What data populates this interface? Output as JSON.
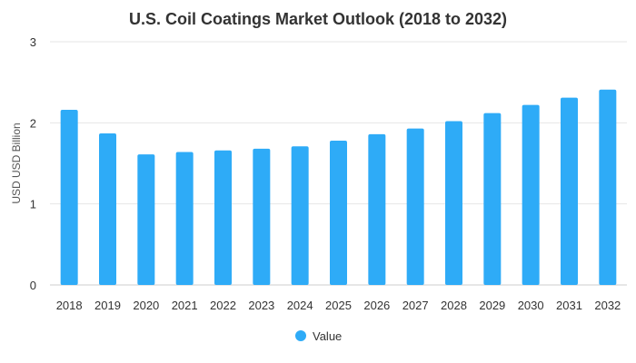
{
  "chart_data": {
    "type": "bar",
    "title": "U.S. Coil Coatings Market Outlook (2018 to 2032)",
    "xlabel": "",
    "ylabel": "USD USD Billion",
    "categories": [
      "2018",
      "2019",
      "2020",
      "2021",
      "2022",
      "2023",
      "2024",
      "2025",
      "2026",
      "2027",
      "2028",
      "2029",
      "2030",
      "2031",
      "2032"
    ],
    "series": [
      {
        "name": "Value",
        "color": "#2eabf7",
        "values": [
          2.16,
          1.87,
          1.61,
          1.64,
          1.66,
          1.68,
          1.71,
          1.78,
          1.86,
          1.93,
          2.02,
          2.12,
          2.22,
          2.31,
          2.41
        ]
      }
    ],
    "ylim": [
      0,
      3
    ],
    "yticks": [
      "0",
      "1",
      "2",
      "3"
    ],
    "grid": true,
    "legend_position": "bottom"
  }
}
